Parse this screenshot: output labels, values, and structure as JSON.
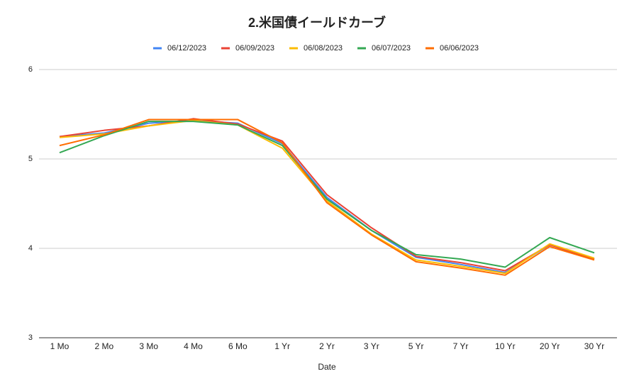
{
  "chart_data": {
    "type": "line",
    "title": "2.米国債イールドカーブ",
    "x_label": "Date",
    "categories": [
      "1 Mo",
      "2 Mo",
      "3 Mo",
      "4 Mo",
      "6 Mo",
      "1 Yr",
      "2 Yr",
      "3 Yr",
      "5 Yr",
      "7 Yr",
      "10 Yr",
      "20 Yr",
      "30 Yr"
    ],
    "series": [
      {
        "name": "06/12/2023",
        "color": "#4285f4",
        "values": [
          5.25,
          5.29,
          5.4,
          5.43,
          5.4,
          5.17,
          4.57,
          4.2,
          3.9,
          3.82,
          3.73,
          4.04,
          3.88
        ]
      },
      {
        "name": "06/09/2023",
        "color": "#ea4335",
        "values": [
          5.25,
          5.32,
          5.37,
          5.45,
          5.39,
          5.2,
          4.6,
          4.23,
          3.91,
          3.84,
          3.75,
          4.04,
          3.88
        ]
      },
      {
        "name": "06/08/2023",
        "color": "#fbbc04",
        "values": [
          5.24,
          5.28,
          5.37,
          5.43,
          5.38,
          5.12,
          4.53,
          4.16,
          3.87,
          3.8,
          3.72,
          4.05,
          3.89
        ]
      },
      {
        "name": "06/07/2023",
        "color": "#34a853",
        "values": [
          5.07,
          5.26,
          5.42,
          5.42,
          5.38,
          5.15,
          4.55,
          4.2,
          3.93,
          3.88,
          3.79,
          4.12,
          3.95
        ]
      },
      {
        "name": "06/06/2023",
        "color": "#ff6d01",
        "values": [
          5.15,
          5.27,
          5.44,
          5.44,
          5.44,
          5.18,
          4.51,
          4.15,
          3.85,
          3.78,
          3.7,
          4.02,
          3.87
        ]
      }
    ],
    "ylim": [
      3,
      6
    ],
    "yticks": [
      3,
      4,
      5,
      6
    ],
    "grid": true,
    "legend": "top"
  }
}
